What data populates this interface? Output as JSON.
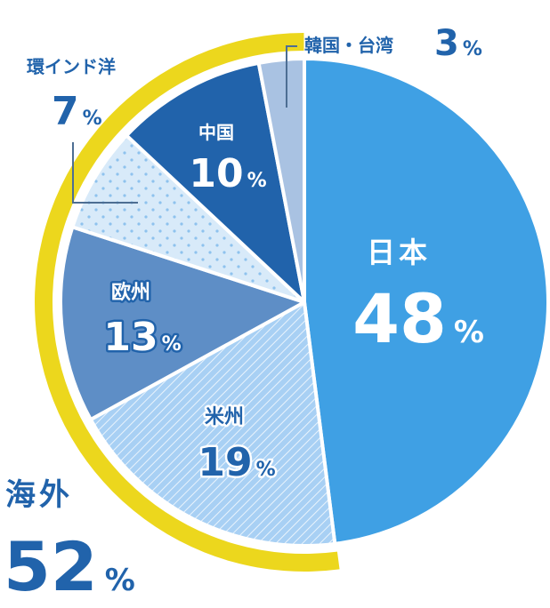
{
  "chart_data": {
    "type": "pie",
    "categories": [
      "日本",
      "米州",
      "欧州",
      "環インド洋",
      "中国",
      "韓国・台湾"
    ],
    "values": [
      48,
      19,
      13,
      7,
      10,
      3
    ],
    "unit": "%",
    "colors": [
      "#3fa0e4",
      "#a8d0f4",
      "#5e8ec6",
      "#d8eaf9",
      "#2163ab",
      "#a9c2e2"
    ],
    "group": {
      "label": "海外",
      "value": 52,
      "unit": "%",
      "color": "#ecd71d"
    }
  }
}
